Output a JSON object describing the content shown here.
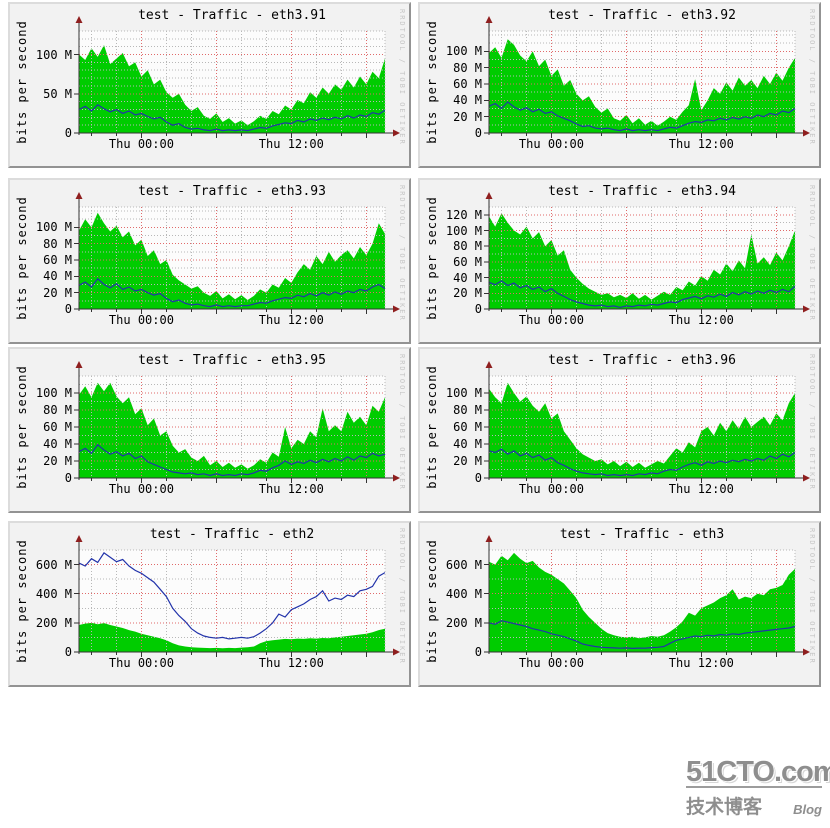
{
  "watermark_text": "RRDTOOL / TOBI OETIKER",
  "logo": {
    "line1": "51CTO.com",
    "line2": "技术博客",
    "line3": "Blog"
  },
  "colors": {
    "green": "#00cc00",
    "blue": "#2233aa",
    "grid_major": "#e06a6a",
    "grid_minor": "#b8b8b8",
    "axis": "#333333",
    "arrow": "#8f1f1f",
    "plot_bg": "#fcfcfc",
    "panel_bg": "#f2f2f2",
    "watermark": "#c6c6c6"
  },
  "axis": {
    "x_range_hours": 24.5,
    "x_major_hours": [
      5,
      11,
      17,
      23
    ],
    "x_minor_hours": [
      1,
      3,
      7,
      9,
      13,
      15,
      19,
      21
    ],
    "xticks": [
      {
        "t": 5,
        "label": "Thu 00:00"
      },
      {
        "t": 17,
        "label": "Thu 12:00"
      }
    ]
  },
  "chart_data": [
    {
      "type": "area",
      "title": "test - Traffic - eth3.91",
      "ylabel": "bits per second",
      "unit": "M",
      "ymax": 130,
      "minor_step": 10,
      "yticks": [
        0,
        50,
        100
      ],
      "ytick_labels": [
        "0",
        "50 M",
        "100 M"
      ],
      "xtick_labels": [
        "Thu 00:00",
        "Thu 12:00"
      ],
      "series": [
        {
          "name": "inbound",
          "type": "area",
          "color": "green",
          "values": [
            100,
            93,
            108,
            97,
            112,
            88,
            95,
            102,
            85,
            90,
            72,
            80,
            62,
            68,
            52,
            45,
            50,
            36,
            28,
            33,
            22,
            18,
            25,
            14,
            19,
            12,
            16,
            10,
            15,
            22,
            18,
            28,
            24,
            35,
            30,
            42,
            38,
            52,
            45,
            58,
            50,
            62,
            55,
            68,
            58,
            72,
            62,
            78,
            70,
            95
          ]
        },
        {
          "name": "outbound",
          "type": "line",
          "color": "blue",
          "values": [
            30,
            34,
            28,
            36,
            31,
            27,
            30,
            25,
            28,
            23,
            25,
            21,
            18,
            20,
            14,
            10,
            12,
            7,
            5,
            6,
            4,
            3,
            5,
            3,
            4,
            3,
            4,
            3,
            5,
            7,
            6,
            9,
            11,
            13,
            12,
            16,
            14,
            18,
            16,
            19,
            17,
            20,
            18,
            22,
            19,
            23,
            21,
            26,
            24,
            29
          ]
        }
      ]
    },
    {
      "type": "area",
      "title": "test - Traffic - eth3.92",
      "ylabel": "bits per second",
      "unit": "M",
      "ymax": 125,
      "minor_step": 10,
      "yticks": [
        0,
        20,
        40,
        60,
        80,
        100
      ],
      "ytick_labels": [
        "0",
        "20 M",
        "40 M",
        "60 M",
        "80 M",
        "100 M"
      ],
      "xtick_labels": [
        "Thu 00:00",
        "Thu 12:00"
      ],
      "series": [
        {
          "name": "inbound",
          "type": "area",
          "color": "green",
          "values": [
            98,
            105,
            92,
            115,
            108,
            95,
            88,
            100,
            82,
            90,
            70,
            78,
            58,
            65,
            48,
            40,
            45,
            32,
            25,
            30,
            18,
            15,
            22,
            12,
            18,
            10,
            15,
            9,
            14,
            20,
            16,
            26,
            34,
            66,
            28,
            40,
            55,
            48,
            62,
            52,
            68,
            58,
            65,
            55,
            70,
            60,
            74,
            64,
            80,
            92
          ]
        },
        {
          "name": "outbound",
          "type": "line",
          "color": "blue",
          "values": [
            33,
            36,
            30,
            38,
            32,
            28,
            31,
            26,
            29,
            24,
            26,
            21,
            18,
            15,
            11,
            8,
            9,
            6,
            5,
            6,
            4,
            3,
            5,
            3,
            4,
            3,
            4,
            3,
            5,
            7,
            6,
            9,
            12,
            14,
            13,
            16,
            15,
            18,
            16,
            19,
            17,
            20,
            18,
            22,
            20,
            24,
            22,
            27,
            25,
            30
          ]
        }
      ]
    },
    {
      "type": "area",
      "title": "test - Traffic - eth3.93",
      "ylabel": "bits per second",
      "unit": "M",
      "ymax": 125,
      "minor_step": 10,
      "yticks": [
        0,
        20,
        40,
        60,
        80,
        100
      ],
      "ytick_labels": [
        "0",
        "20 M",
        "40 M",
        "60 M",
        "80 M",
        "100 M"
      ],
      "xtick_labels": [
        "Thu 00:00",
        "Thu 12:00"
      ],
      "series": [
        {
          "name": "inbound",
          "type": "area",
          "color": "green",
          "values": [
            96,
            110,
            100,
            118,
            105,
            95,
            102,
            88,
            95,
            78,
            85,
            65,
            72,
            55,
            60,
            42,
            35,
            30,
            25,
            28,
            20,
            16,
            22,
            13,
            18,
            12,
            17,
            11,
            16,
            24,
            20,
            30,
            26,
            38,
            32,
            45,
            55,
            48,
            65,
            55,
            70,
            58,
            66,
            72,
            62,
            76,
            66,
            80,
            105,
            92
          ]
        },
        {
          "name": "outbound",
          "type": "line",
          "color": "blue",
          "values": [
            29,
            33,
            27,
            37,
            30,
            26,
            31,
            24,
            27,
            22,
            24,
            20,
            17,
            19,
            13,
            9,
            11,
            7,
            5,
            6,
            4,
            3,
            5,
            3,
            4,
            3,
            4,
            4,
            6,
            8,
            7,
            10,
            12,
            14,
            13,
            17,
            15,
            19,
            16,
            20,
            17,
            21,
            18,
            22,
            20,
            24,
            22,
            27,
            30,
            25
          ]
        }
      ]
    },
    {
      "type": "area",
      "title": "test - Traffic - eth3.94",
      "ylabel": "bits per second",
      "unit": "M",
      "ymax": 130,
      "minor_step": 10,
      "yticks": [
        0,
        20,
        40,
        60,
        80,
        100,
        120
      ],
      "ytick_labels": [
        "0",
        "20 M",
        "40 M",
        "60 M",
        "80 M",
        "100 M",
        "120 M"
      ],
      "xtick_labels": [
        "Thu 00:00",
        "Thu 12:00"
      ],
      "series": [
        {
          "name": "inbound",
          "type": "area",
          "color": "green",
          "values": [
            118,
            105,
            122,
            110,
            100,
            95,
            105,
            90,
            98,
            80,
            88,
            68,
            75,
            50,
            40,
            32,
            26,
            22,
            18,
            20,
            15,
            18,
            14,
            20,
            13,
            18,
            12,
            17,
            22,
            18,
            28,
            24,
            35,
            30,
            42,
            36,
            50,
            44,
            58,
            48,
            62,
            52,
            95,
            58,
            66,
            56,
            72,
            62,
            80,
            100
          ]
        },
        {
          "name": "outbound",
          "type": "line",
          "color": "blue",
          "values": [
            34,
            31,
            36,
            30,
            33,
            27,
            30,
            25,
            28,
            22,
            26,
            20,
            16,
            12,
            9,
            7,
            5,
            4,
            5,
            3,
            4,
            2,
            4,
            3,
            5,
            4,
            6,
            5,
            7,
            9,
            8,
            12,
            14,
            16,
            13,
            17,
            15,
            19,
            16,
            21,
            18,
            22,
            19,
            23,
            20,
            24,
            21,
            25,
            22,
            29
          ]
        }
      ]
    },
    {
      "type": "area",
      "title": "test - Traffic - eth3.95",
      "ylabel": "bits per second",
      "unit": "M",
      "ymax": 120,
      "minor_step": 10,
      "yticks": [
        0,
        20,
        40,
        60,
        80,
        100
      ],
      "ytick_labels": [
        "0",
        "20 M",
        "40 M",
        "60 M",
        "80 M",
        "100 M"
      ],
      "xtick_labels": [
        "Thu 00:00",
        "Thu 12:00"
      ],
      "series": [
        {
          "name": "inbound",
          "type": "area",
          "color": "green",
          "values": [
            98,
            108,
            95,
            112,
            102,
            112,
            96,
            88,
            95,
            75,
            82,
            62,
            70,
            50,
            55,
            38,
            30,
            34,
            24,
            20,
            26,
            15,
            20,
            13,
            18,
            12,
            16,
            11,
            15,
            22,
            18,
            30,
            25,
            60,
            35,
            45,
            40,
            55,
            48,
            82,
            55,
            62,
            55,
            78,
            65,
            72,
            62,
            85,
            78,
            95
          ]
        },
        {
          "name": "outbound",
          "type": "line",
          "color": "blue",
          "values": [
            31,
            35,
            29,
            39,
            33,
            28,
            31,
            26,
            29,
            23,
            26,
            19,
            16,
            13,
            10,
            7,
            6,
            5,
            6,
            4,
            5,
            3,
            5,
            3,
            4,
            3,
            5,
            4,
            6,
            9,
            8,
            12,
            15,
            20,
            16,
            19,
            17,
            21,
            18,
            22,
            19,
            23,
            20,
            25,
            21,
            26,
            24,
            29,
            26,
            28
          ]
        }
      ]
    },
    {
      "type": "area",
      "title": "test - Traffic - eth3.96",
      "ylabel": "bits per second",
      "unit": "M",
      "ymax": 120,
      "minor_step": 10,
      "yticks": [
        0,
        20,
        40,
        60,
        80,
        100
      ],
      "ytick_labels": [
        "0",
        "20 M",
        "40 M",
        "60 M",
        "80 M",
        "100 M"
      ],
      "xtick_labels": [
        "Thu 00:00",
        "Thu 12:00"
      ],
      "series": [
        {
          "name": "inbound",
          "type": "area",
          "color": "green",
          "values": [
            105,
            95,
            88,
            112,
            100,
            90,
            96,
            85,
            78,
            88,
            70,
            76,
            55,
            45,
            35,
            28,
            24,
            20,
            22,
            16,
            20,
            14,
            19,
            13,
            18,
            12,
            16,
            20,
            17,
            26,
            35,
            30,
            42,
            36,
            55,
            60,
            50,
            65,
            55,
            68,
            58,
            72,
            60,
            66,
            72,
            62,
            76,
            68,
            88,
            100
          ]
        },
        {
          "name": "outbound",
          "type": "line",
          "color": "blue",
          "values": [
            32,
            30,
            34,
            28,
            32,
            26,
            29,
            24,
            27,
            21,
            24,
            18,
            15,
            11,
            8,
            6,
            5,
            4,
            5,
            3,
            4,
            3,
            4,
            3,
            5,
            4,
            6,
            5,
            8,
            10,
            9,
            13,
            16,
            18,
            15,
            19,
            17,
            20,
            18,
            21,
            19,
            22,
            20,
            23,
            21,
            26,
            23,
            28,
            25,
            30
          ]
        }
      ]
    },
    {
      "type": "area",
      "title": "test - Traffic - eth2",
      "ylabel": "bits per second",
      "unit": "M",
      "ymax": 700,
      "minor_step": 100,
      "yticks": [
        0,
        200,
        400,
        600
      ],
      "ytick_labels": [
        "0",
        "200 M",
        "400 M",
        "600 M"
      ],
      "xtick_labels": [
        "Thu 00:00",
        "Thu 12:00"
      ],
      "series": [
        {
          "name": "inbound",
          "type": "area",
          "color": "green",
          "values": [
            185,
            195,
            200,
            190,
            198,
            185,
            175,
            165,
            150,
            140,
            125,
            115,
            105,
            95,
            80,
            60,
            45,
            38,
            32,
            30,
            28,
            27,
            28,
            26,
            28,
            27,
            30,
            32,
            38,
            60,
            75,
            80,
            85,
            90,
            88,
            92,
            90,
            95,
            92,
            96,
            95,
            100,
            105,
            110,
            115,
            120,
            125,
            135,
            150,
            160
          ]
        },
        {
          "name": "outbound",
          "type": "line",
          "color": "blue",
          "values": [
            610,
            590,
            640,
            615,
            680,
            650,
            620,
            635,
            590,
            560,
            540,
            510,
            480,
            430,
            380,
            300,
            250,
            210,
            160,
            130,
            110,
            100,
            95,
            100,
            90,
            95,
            100,
            95,
            105,
            130,
            160,
            200,
            260,
            240,
            290,
            310,
            330,
            360,
            380,
            420,
            350,
            370,
            360,
            390,
            380,
            420,
            430,
            450,
            520,
            545
          ]
        }
      ]
    },
    {
      "type": "area",
      "title": "test - Traffic - eth3",
      "ylabel": "bits per second",
      "unit": "M",
      "ymax": 700,
      "minor_step": 100,
      "yticks": [
        0,
        200,
        400,
        600
      ],
      "ytick_labels": [
        "0",
        "200 M",
        "400 M",
        "600 M"
      ],
      "xtick_labels": [
        "Thu 00:00",
        "Thu 12:00"
      ],
      "series": [
        {
          "name": "inbound",
          "type": "area",
          "color": "green",
          "values": [
            620,
            600,
            660,
            630,
            680,
            640,
            610,
            625,
            580,
            550,
            530,
            500,
            470,
            420,
            370,
            290,
            240,
            200,
            160,
            130,
            115,
            105,
            100,
            105,
            95,
            100,
            110,
            105,
            115,
            140,
            170,
            210,
            270,
            250,
            300,
            320,
            340,
            370,
            390,
            430,
            360,
            380,
            370,
            400,
            390,
            430,
            440,
            460,
            530,
            570
          ]
        },
        {
          "name": "outbound",
          "type": "line",
          "color": "blue",
          "values": [
            200,
            190,
            215,
            205,
            195,
            185,
            175,
            160,
            150,
            140,
            125,
            115,
            105,
            90,
            75,
            55,
            45,
            38,
            32,
            30,
            28,
            26,
            28,
            25,
            27,
            26,
            30,
            32,
            38,
            60,
            80,
            90,
            100,
            110,
            105,
            115,
            110,
            120,
            115,
            125,
            120,
            130,
            135,
            140,
            145,
            150,
            155,
            160,
            165,
            175
          ]
        }
      ]
    }
  ]
}
